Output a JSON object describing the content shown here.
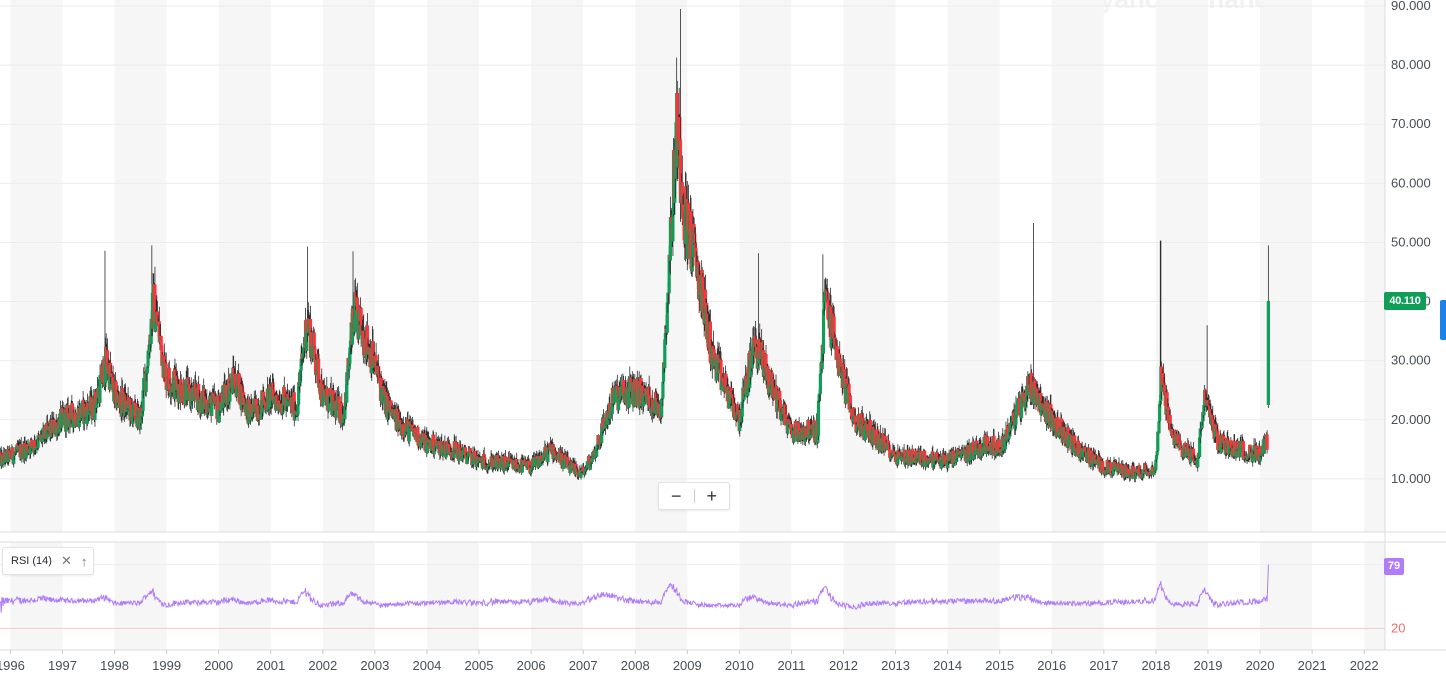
{
  "watermark": "yahoo! finance",
  "price_badge": "40.110",
  "rsi_badge": "79",
  "rsi_tag": {
    "label": "RSI (14)",
    "close_icon": "✕",
    "up_icon": "↑"
  },
  "zoom": {
    "minus": "−",
    "plus": "+"
  },
  "colors": {
    "up": "#0f9d58",
    "down": "#ff333a",
    "wick": "#2d2d2d",
    "rsi": "#b07cf7",
    "band": "#f6f6f6",
    "rsi_low": "#f26c6c"
  },
  "chart_data": [
    {
      "type": "candlestick",
      "x_type": "year",
      "xlim": [
        1995.8,
        2022.4
      ],
      "ylim": [
        0,
        90
      ],
      "y_ticks": [
        "10.000",
        "20.000",
        "30.000",
        "40.000",
        "50.000",
        "60.000",
        "70.000",
        "80.000",
        "90.000"
      ],
      "y_tick_values": [
        10,
        20,
        30,
        40,
        50,
        60,
        70,
        80,
        90
      ],
      "x_tick_labels": [
        "1996",
        "1997",
        "1998",
        "1999",
        "2000",
        "2001",
        "2002",
        "2003",
        "2004",
        "2005",
        "2006",
        "2007",
        "2008",
        "2009",
        "2010",
        "2011",
        "2012",
        "2013",
        "2014",
        "2015",
        "2016",
        "2017",
        "2018",
        "2019",
        "2020",
        "2021",
        "2022"
      ],
      "anchors": [
        [
          1995.8,
          13
        ],
        [
          1996.5,
          16
        ],
        [
          1997.0,
          20
        ],
        [
          1997.6,
          22
        ],
        [
          1997.85,
          30
        ],
        [
          1998.0,
          24
        ],
        [
          1998.5,
          20
        ],
        [
          1998.75,
          40
        ],
        [
          1999.0,
          27
        ],
        [
          1999.5,
          24
        ],
        [
          2000.0,
          22
        ],
        [
          2000.3,
          27
        ],
        [
          2000.6,
          21
        ],
        [
          2001.0,
          24
        ],
        [
          2001.5,
          22
        ],
        [
          2001.7,
          37
        ],
        [
          2002.0,
          24
        ],
        [
          2002.4,
          21
        ],
        [
          2002.6,
          38
        ],
        [
          2002.9,
          32
        ],
        [
          2003.2,
          23
        ],
        [
          2003.4,
          20
        ],
        [
          2004.0,
          16
        ],
        [
          2004.5,
          15
        ],
        [
          2005.0,
          13
        ],
        [
          2005.5,
          12.5
        ],
        [
          2006.0,
          12
        ],
        [
          2006.4,
          15
        ],
        [
          2006.8,
          11.5
        ],
        [
          2007.0,
          11
        ],
        [
          2007.2,
          14
        ],
        [
          2007.6,
          24
        ],
        [
          2008.0,
          25
        ],
        [
          2008.5,
          22
        ],
        [
          2008.8,
          70
        ],
        [
          2008.95,
          55
        ],
        [
          2009.2,
          45
        ],
        [
          2009.5,
          30
        ],
        [
          2010.0,
          20
        ],
        [
          2010.3,
          33
        ],
        [
          2010.6,
          26
        ],
        [
          2011.0,
          18
        ],
        [
          2011.5,
          18
        ],
        [
          2011.65,
          41
        ],
        [
          2011.9,
          30
        ],
        [
          2012.2,
          20
        ],
        [
          2012.5,
          18
        ],
        [
          2013.0,
          14
        ],
        [
          2014.0,
          13
        ],
        [
          2014.8,
          16
        ],
        [
          2015.0,
          15
        ],
        [
          2015.6,
          26
        ],
        [
          2016.0,
          20
        ],
        [
          2016.5,
          15
        ],
        [
          2017.0,
          12
        ],
        [
          2017.6,
          11
        ],
        [
          2018.0,
          12
        ],
        [
          2018.1,
          28
        ],
        [
          2018.3,
          17
        ],
        [
          2018.8,
          13
        ],
        [
          2018.95,
          24
        ],
        [
          2019.2,
          16
        ],
        [
          2019.6,
          15
        ],
        [
          2020.0,
          14
        ],
        [
          2020.1,
          16
        ]
      ],
      "spikes": [
        [
          1997.82,
          48.6
        ],
        [
          1998.72,
          49.5
        ],
        [
          2001.7,
          49.3
        ],
        [
          2002.58,
          48.5
        ],
        [
          2008.87,
          89.5
        ],
        [
          2010.37,
          48.2
        ],
        [
          2011.6,
          48
        ],
        [
          2015.65,
          53.3
        ],
        [
          2018.09,
          50.3
        ],
        [
          2018.98,
          36
        ],
        [
          2020.15,
          49.5
        ]
      ],
      "last_candle": {
        "x": 2020.16,
        "open": 22.5,
        "close": 40.11,
        "low": 22,
        "high": 49.5
      }
    },
    {
      "type": "line",
      "name": "RSI (14)",
      "xlim": [
        1995.8,
        2022.4
      ],
      "ylim": [
        0,
        100
      ],
      "y_ticks": [
        "20",
        "79"
      ],
      "y_tick_values": [
        20,
        79
      ],
      "last_value": 79
    }
  ]
}
